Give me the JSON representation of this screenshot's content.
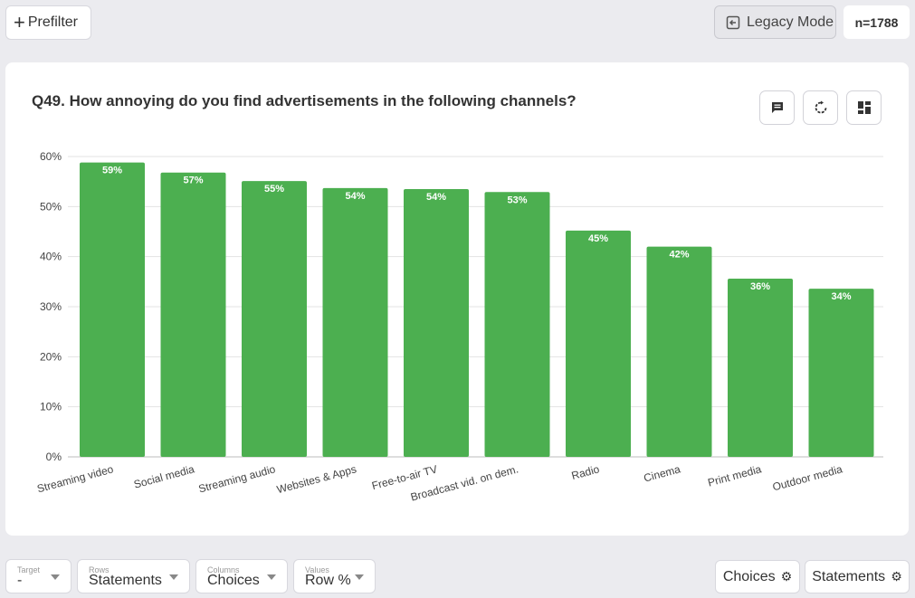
{
  "header": {
    "prefilter_label": "Prefilter",
    "legacy_label": "Legacy Mode",
    "n_label": "n=1788"
  },
  "card": {
    "title": "Q49. How annoying do you find advertisements in the following channels?",
    "tools": [
      "comment-icon",
      "refresh-icon",
      "layout-icon"
    ]
  },
  "chart_data": {
    "type": "bar",
    "categories": [
      "Streaming video",
      "Social media",
      "Streaming audio",
      "Websites & Apps",
      "Free-to-air TV",
      "Broadcast vid. on dem.",
      "Radio",
      "Cinema",
      "Print media",
      "Outdoor media"
    ],
    "values": [
      58.8,
      56.8,
      55.1,
      53.7,
      53.5,
      52.9,
      45.2,
      42.0,
      35.6,
      33.6
    ],
    "data_labels": [
      "59%",
      "57%",
      "55%",
      "54%",
      "54%",
      "53%",
      "45%",
      "42%",
      "36%",
      "34%"
    ],
    "yticks": [
      "0%",
      "10%",
      "20%",
      "30%",
      "40%",
      "50%",
      "60%"
    ],
    "ylim": [
      0,
      60
    ],
    "grid": true,
    "bar_color": "#4caf50"
  },
  "footer": {
    "target": {
      "label": "Target",
      "value": "-"
    },
    "rows": {
      "label": "Rows",
      "value": "Statements"
    },
    "columns": {
      "label": "Columns",
      "value": "Choices"
    },
    "values": {
      "label": "Values",
      "value": "Row %"
    },
    "choices_label": "Choices",
    "statements_label": "Statements"
  }
}
